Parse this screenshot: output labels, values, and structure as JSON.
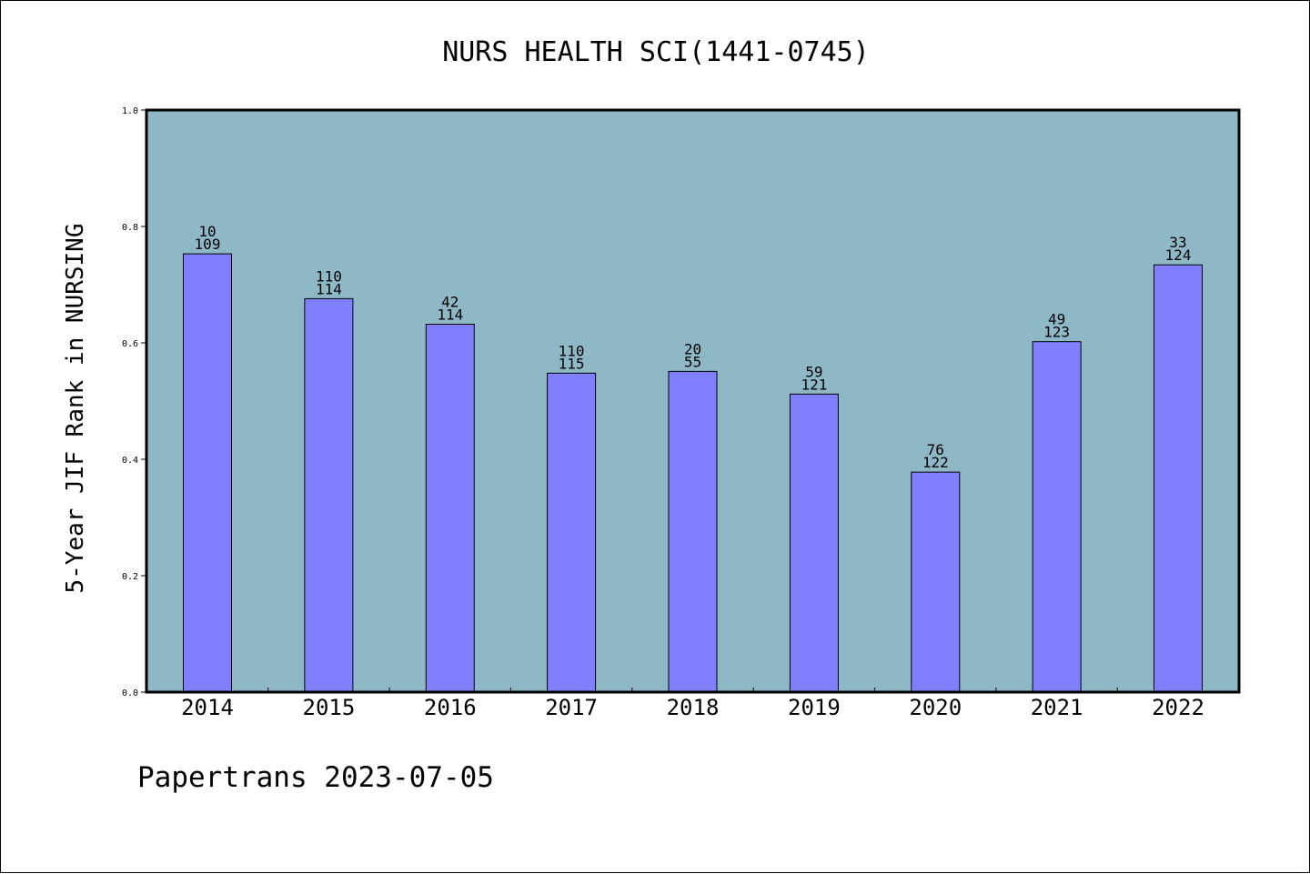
{
  "chart_data": {
    "type": "bar",
    "title": "NURS HEALTH SCI(1441-0745)",
    "xlabel": "",
    "ylabel": "5-Year JIF Rank in NURSING",
    "categories": [
      "2014",
      "2015",
      "2016",
      "2017",
      "2018",
      "2019",
      "2020",
      "2021",
      "2022"
    ],
    "values": [
      0.753,
      0.676,
      0.632,
      0.548,
      0.551,
      0.512,
      0.378,
      0.602,
      0.734
    ],
    "rank_labels": [
      "10",
      "110",
      "42",
      "110",
      "20",
      "59",
      "76",
      "49",
      "33"
    ],
    "total_labels": [
      "109",
      "114",
      "114",
      "115",
      "55",
      "121",
      "122",
      "123",
      "124"
    ],
    "ylim": [
      0,
      1.0
    ],
    "yticks": [
      "0.0",
      "0.2",
      "0.4",
      "0.6",
      "0.8",
      "1.0"
    ],
    "grid": false,
    "colors": {
      "plot_background": "#8fb8c7",
      "bar_fill": "#8080ff",
      "bar_stroke": "#000000"
    }
  },
  "footer": {
    "text": "Papertrans 2023-07-05"
  }
}
